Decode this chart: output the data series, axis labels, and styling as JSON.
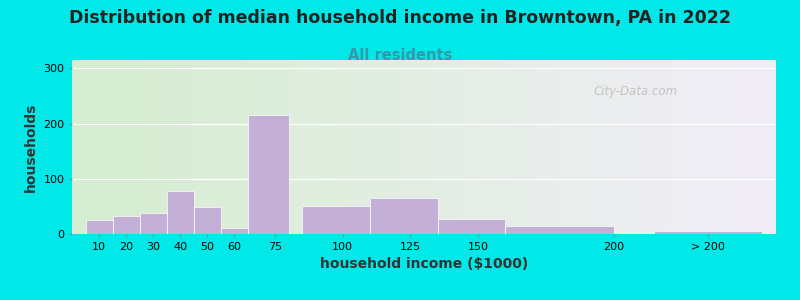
{
  "title": "Distribution of median household income in Browntown, PA in 2022",
  "subtitle": "All residents",
  "xlabel": "household income ($1000)",
  "ylabel": "households",
  "bar_color": "#c4afd6",
  "bg_outer": "#00e8e8",
  "bg_plot_left": "#d5edd0",
  "bg_plot_right": "#f2eef8",
  "yticks": [
    0,
    100,
    200,
    300
  ],
  "ylim": [
    0,
    315
  ],
  "title_fontsize": 12.5,
  "subtitle_fontsize": 10.5,
  "xlabel_fontsize": 10,
  "ylabel_fontsize": 10,
  "watermark": "City-Data.com",
  "bar_lefts": [
    5,
    15,
    25,
    35,
    45,
    55,
    65,
    85,
    110,
    135,
    160,
    215
  ],
  "bar_widths": [
    10,
    10,
    10,
    10,
    10,
    10,
    15,
    25,
    25,
    25,
    40,
    40
  ],
  "bar_heights": [
    25,
    32,
    38,
    78,
    48,
    10,
    215,
    50,
    65,
    28,
    15,
    5
  ],
  "tick_positions": [
    10,
    20,
    30,
    40,
    50,
    60,
    75,
    100,
    125,
    150,
    200,
    235
  ],
  "tick_labels": [
    "10",
    "20",
    "30",
    "40",
    "50",
    "60",
    "75",
    "100",
    "125",
    "150",
    "200",
    "> 200"
  ],
  "xlim": [
    0,
    260
  ]
}
